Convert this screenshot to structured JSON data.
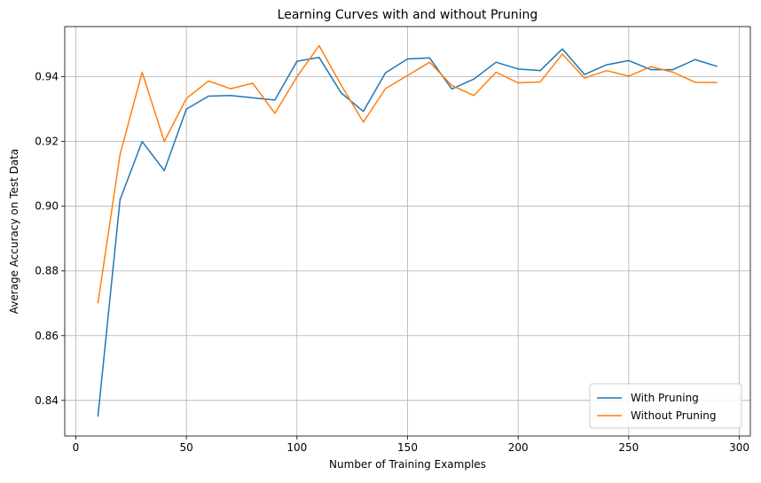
{
  "chart_data": {
    "type": "line",
    "title": "Learning Curves with and without Pruning",
    "xlabel": "Number of Training Examples",
    "ylabel": "Average Accuracy on Test Data",
    "xlim": [
      -5,
      305
    ],
    "ylim": [
      0.829,
      0.9555
    ],
    "xticks": [
      0,
      50,
      100,
      150,
      200,
      250,
      300
    ],
    "yticks": [
      0.84,
      0.86,
      0.88,
      0.9,
      0.92,
      0.94
    ],
    "ytick_labels": [
      "0.84",
      "0.86",
      "0.88",
      "0.90",
      "0.92",
      "0.94"
    ],
    "grid": true,
    "legend_position": "bottom-right",
    "x": [
      10,
      20,
      30,
      40,
      50,
      60,
      70,
      80,
      90,
      100,
      110,
      120,
      130,
      140,
      150,
      160,
      170,
      180,
      190,
      200,
      210,
      220,
      230,
      240,
      250,
      260,
      270,
      280,
      290
    ],
    "series": [
      {
        "name": "With Pruning",
        "color": "#1f77b4",
        "values": [
          0.835,
          0.902,
          0.92,
          0.911,
          0.93,
          0.934,
          0.9342,
          0.9335,
          0.9328,
          0.9448,
          0.946,
          0.935,
          0.9293,
          0.9412,
          0.9455,
          0.9458,
          0.9362,
          0.9393,
          0.9445,
          0.9424,
          0.9419,
          0.9486,
          0.9407,
          0.9437,
          0.945,
          0.9422,
          0.9422,
          0.9453,
          0.9432
        ]
      },
      {
        "name": "Without Pruning",
        "color": "#ff7f0e",
        "values": [
          0.87,
          0.916,
          0.9414,
          0.92,
          0.9333,
          0.9387,
          0.9363,
          0.938,
          0.9287,
          0.94,
          0.9496,
          0.9374,
          0.926,
          0.9363,
          0.9404,
          0.9445,
          0.9373,
          0.9342,
          0.9414,
          0.9381,
          0.9384,
          0.947,
          0.9396,
          0.9419,
          0.9402,
          0.9431,
          0.9414,
          0.9383,
          0.9382
        ]
      }
    ]
  }
}
